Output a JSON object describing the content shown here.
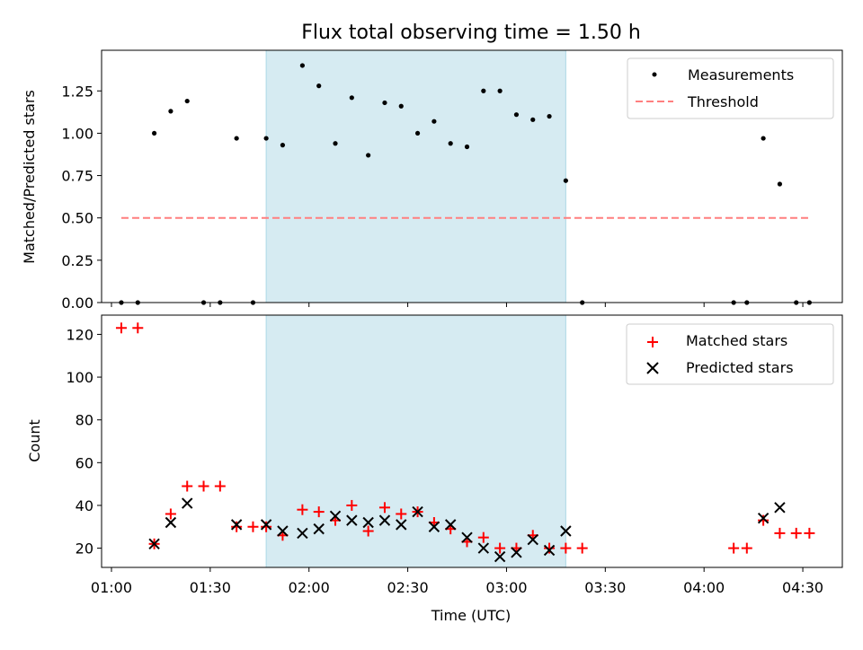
{
  "chart_data": [
    {
      "type": "scatter",
      "title": "Flux total observing time = 1.50 h",
      "xlabel": "",
      "ylabel": "Matched/Predicted stars",
      "x_unit": "time (UTC)",
      "xlim": [
        "00:57",
        "04:42"
      ],
      "ylim": [
        0,
        1.49
      ],
      "yticks": [
        0,
        0.25,
        0.5,
        0.75,
        1.0,
        1.25
      ],
      "ytick_labels": [
        "0.00",
        "0.25",
        "0.50",
        "0.75",
        "1.00",
        "1.25"
      ],
      "shaded_interval": [
        "01:47",
        "03:18"
      ],
      "shade_color": "#add8e6",
      "legend_position": "upper right",
      "series": [
        {
          "name": "Measurements",
          "marker": "dot",
          "color": "#000000",
          "points": [
            [
              "01:03",
              0.0
            ],
            [
              "01:08",
              0.0
            ],
            [
              "01:13",
              1.0
            ],
            [
              "01:18",
              1.13
            ],
            [
              "01:23",
              1.19
            ],
            [
              "01:28",
              0.0
            ],
            [
              "01:33",
              0.0
            ],
            [
              "01:38",
              0.97
            ],
            [
              "01:43",
              0.0
            ],
            [
              "01:47",
              0.97
            ],
            [
              "01:52",
              0.93
            ],
            [
              "01:58",
              1.4
            ],
            [
              "02:03",
              1.28
            ],
            [
              "02:08",
              0.94
            ],
            [
              "02:13",
              1.21
            ],
            [
              "02:18",
              0.87
            ],
            [
              "02:23",
              1.18
            ],
            [
              "02:28",
              1.16
            ],
            [
              "02:33",
              1.0
            ],
            [
              "02:38",
              1.07
            ],
            [
              "02:43",
              0.94
            ],
            [
              "02:48",
              0.92
            ],
            [
              "02:53",
              1.25
            ],
            [
              "02:58",
              1.25
            ],
            [
              "03:03",
              1.11
            ],
            [
              "03:08",
              1.08
            ],
            [
              "03:13",
              1.1
            ],
            [
              "03:18",
              0.72
            ],
            [
              "03:23",
              0.0
            ],
            [
              "04:09",
              0.0
            ],
            [
              "04:13",
              0.0
            ],
            [
              "04:18",
              0.97
            ],
            [
              "04:23",
              0.7
            ],
            [
              "04:28",
              0.0
            ],
            [
              "04:32",
              0.0
            ]
          ]
        },
        {
          "name": "Threshold",
          "marker": "dashed-line",
          "color": "#ff7f7f",
          "points": [
            [
              "01:03",
              0.5
            ],
            [
              "04:32",
              0.5
            ]
          ]
        }
      ]
    },
    {
      "type": "scatter",
      "title": "",
      "xlabel": "Time (UTC)",
      "ylabel": "Count",
      "xlim": [
        "00:57",
        "04:42"
      ],
      "ylim": [
        11,
        129
      ],
      "yticks": [
        20,
        40,
        60,
        80,
        100,
        120
      ],
      "ytick_labels": [
        "20",
        "40",
        "60",
        "80",
        "100",
        "120"
      ],
      "xticks": [
        "01:00",
        "01:30",
        "02:00",
        "02:30",
        "03:00",
        "03:30",
        "04:00",
        "04:30"
      ],
      "shaded_interval": [
        "01:47",
        "03:18"
      ],
      "shade_color": "#add8e6",
      "legend_position": "upper right",
      "series": [
        {
          "name": "Matched stars",
          "marker": "plus",
          "color": "#ff0000",
          "points": [
            [
              "01:03",
              123
            ],
            [
              "01:08",
              123
            ],
            [
              "01:13",
              22
            ],
            [
              "01:18",
              36
            ],
            [
              "01:23",
              49
            ],
            [
              "01:28",
              49
            ],
            [
              "01:33",
              49
            ],
            [
              "01:38",
              30
            ],
            [
              "01:43",
              30
            ],
            [
              "01:47",
              30
            ],
            [
              "01:52",
              26
            ],
            [
              "01:58",
              38
            ],
            [
              "02:03",
              37
            ],
            [
              "02:08",
              33
            ],
            [
              "02:13",
              40
            ],
            [
              "02:18",
              28
            ],
            [
              "02:23",
              39
            ],
            [
              "02:28",
              36
            ],
            [
              "02:33",
              37
            ],
            [
              "02:38",
              32
            ],
            [
              "02:43",
              29
            ],
            [
              "02:48",
              23
            ],
            [
              "02:53",
              25
            ],
            [
              "02:58",
              20
            ],
            [
              "03:03",
              20
            ],
            [
              "03:08",
              26
            ],
            [
              "03:13",
              20
            ],
            [
              "03:18",
              20
            ],
            [
              "03:23",
              20
            ],
            [
              "04:09",
              20
            ],
            [
              "04:13",
              20
            ],
            [
              "04:18",
              33
            ],
            [
              "04:23",
              27
            ],
            [
              "04:28",
              27
            ],
            [
              "04:32",
              27
            ]
          ]
        },
        {
          "name": "Predicted stars",
          "marker": "x",
          "color": "#000000",
          "points": [
            [
              "01:13",
              22
            ],
            [
              "01:18",
              32
            ],
            [
              "01:23",
              41
            ],
            [
              "01:38",
              31
            ],
            [
              "01:47",
              31
            ],
            [
              "01:52",
              28
            ],
            [
              "01:58",
              27
            ],
            [
              "02:03",
              29
            ],
            [
              "02:08",
              35
            ],
            [
              "02:13",
              33
            ],
            [
              "02:18",
              32
            ],
            [
              "02:23",
              33
            ],
            [
              "02:28",
              31
            ],
            [
              "02:33",
              37
            ],
            [
              "02:38",
              30
            ],
            [
              "02:43",
              31
            ],
            [
              "02:48",
              25
            ],
            [
              "02:53",
              20
            ],
            [
              "02:58",
              16
            ],
            [
              "03:03",
              18
            ],
            [
              "03:08",
              24
            ],
            [
              "03:13",
              19
            ],
            [
              "03:18",
              28
            ],
            [
              "04:18",
              34
            ],
            [
              "04:23",
              39
            ]
          ]
        }
      ]
    }
  ]
}
